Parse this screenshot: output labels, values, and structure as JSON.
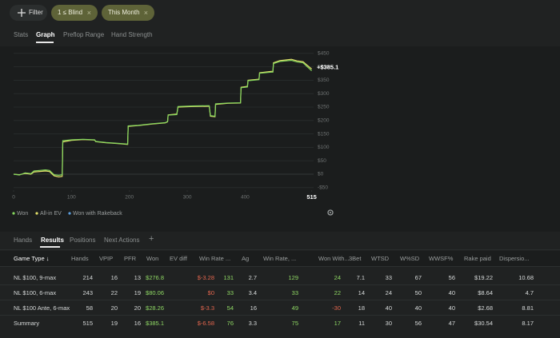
{
  "filters": {
    "add": "Filter",
    "chips": [
      "1 ≤ Blind",
      "This Month"
    ]
  },
  "top_tabs": [
    "Stats",
    "Graph",
    "Preflop Range",
    "Hand Strength"
  ],
  "chart_data": {
    "type": "line",
    "x": [
      0,
      10,
      20,
      30,
      35,
      45,
      55,
      62,
      70,
      78,
      84,
      85,
      100,
      120,
      140,
      142,
      160,
      180,
      197,
      198,
      215,
      240,
      262,
      266,
      267,
      282,
      284,
      310,
      335,
      338,
      340,
      348,
      349,
      370,
      392,
      393,
      404,
      405,
      424,
      425,
      445,
      448,
      449,
      460,
      480,
      490,
      500,
      515
    ],
    "series": [
      {
        "name": "Won",
        "color": "#86d85e",
        "values": [
          0,
          -3,
          5,
          2,
          12,
          14,
          16,
          14,
          -2,
          -4,
          -2,
          125,
          128,
          130,
          128,
          122,
          118,
          115,
          112,
          180,
          182,
          188,
          192,
          196,
          220,
          222,
          252,
          254,
          255,
          255,
          218,
          216,
          262,
          265,
          266,
          322,
          325,
          348,
          352,
          376,
          380,
          380,
          412,
          420,
          424,
          418,
          415,
          385.1
        ]
      },
      {
        "name": "All-in EV",
        "color": "#e2df6a",
        "values": [
          0,
          -2,
          3,
          0,
          8,
          10,
          12,
          10,
          -6,
          -10,
          -8,
          120,
          126,
          129,
          127,
          121,
          117,
          114,
          111,
          178,
          181,
          187,
          191,
          195,
          221,
          224,
          250,
          252,
          253,
          253,
          216,
          214,
          260,
          264,
          265,
          324,
          327,
          350,
          354,
          378,
          383,
          383,
          415,
          423,
          428,
          422,
          419,
          391.7
        ]
      },
      {
        "name": "Won with Rakeback",
        "color": "#5b9ede",
        "values": [
          null,
          null,
          null,
          null,
          null,
          null,
          null,
          null,
          null,
          null,
          null,
          null,
          null,
          null,
          null,
          null,
          null,
          null,
          null,
          null,
          null,
          null,
          null,
          null,
          null,
          null,
          null,
          null,
          null,
          null,
          null,
          null,
          null,
          null,
          null,
          null,
          null,
          null,
          null,
          null,
          null,
          null,
          null,
          null,
          null,
          null,
          null,
          null
        ]
      }
    ],
    "end_label": "+$385.1",
    "xlim": [
      0,
      515
    ],
    "xticks": [
      0,
      100,
      200,
      300,
      400,
      515
    ],
    "ylim": [
      -50,
      450
    ],
    "yticks": [
      {
        "value": -50,
        "label": "-$50"
      },
      {
        "value": 0,
        "label": "$0"
      },
      {
        "value": 50,
        "label": "$50"
      },
      {
        "value": 100,
        "label": "$100"
      },
      {
        "value": 150,
        "label": "$150"
      },
      {
        "value": 200,
        "label": "$200"
      },
      {
        "value": 250,
        "label": "$250"
      },
      {
        "value": 300,
        "label": "$300"
      },
      {
        "value": 350,
        "label": "$350"
      },
      {
        "value": 400,
        "label": "$400"
      },
      {
        "value": 450,
        "label": "$450"
      }
    ],
    "grid": true
  },
  "bottom_tabs": [
    "Hands",
    "Results",
    "Positions",
    "Next Actions"
  ],
  "table": {
    "columns": [
      "Game Type ↓",
      "Hands",
      "VPIP",
      "PFR",
      "Won",
      "EV diff",
      "Win Rate ...",
      "Ag",
      "Win Rate, ...",
      "Won With...",
      "3Bet",
      "WTSD",
      "W%SD",
      "WWSF%",
      "Rake paid",
      "Dispersio..."
    ],
    "rows": [
      [
        "NL $100, 9-max",
        "214",
        "16",
        "13",
        "$276.8",
        "$-3.28",
        "131",
        "2.7",
        "129",
        "24",
        "7.1",
        "33",
        "67",
        "56",
        "$19.22",
        "10.68"
      ],
      [
        "NL $100, 6-max",
        "243",
        "22",
        "19",
        "$80.06",
        "$0",
        "33",
        "3.4",
        "33",
        "22",
        "14",
        "24",
        "50",
        "40",
        "$8.64",
        "4.7"
      ],
      [
        "NL $100 Ante, 6-max",
        "58",
        "20",
        "20",
        "$28.26",
        "$-3.3",
        "54",
        "16",
        "49",
        "-30",
        "18",
        "40",
        "40",
        "40",
        "$2.68",
        "8.81"
      ],
      [
        "Summary",
        "515",
        "19",
        "16",
        "$385.1",
        "$-6.58",
        "76",
        "3.3",
        "75",
        "17",
        "11",
        "30",
        "56",
        "47",
        "$30.54",
        "8.17"
      ]
    ]
  }
}
